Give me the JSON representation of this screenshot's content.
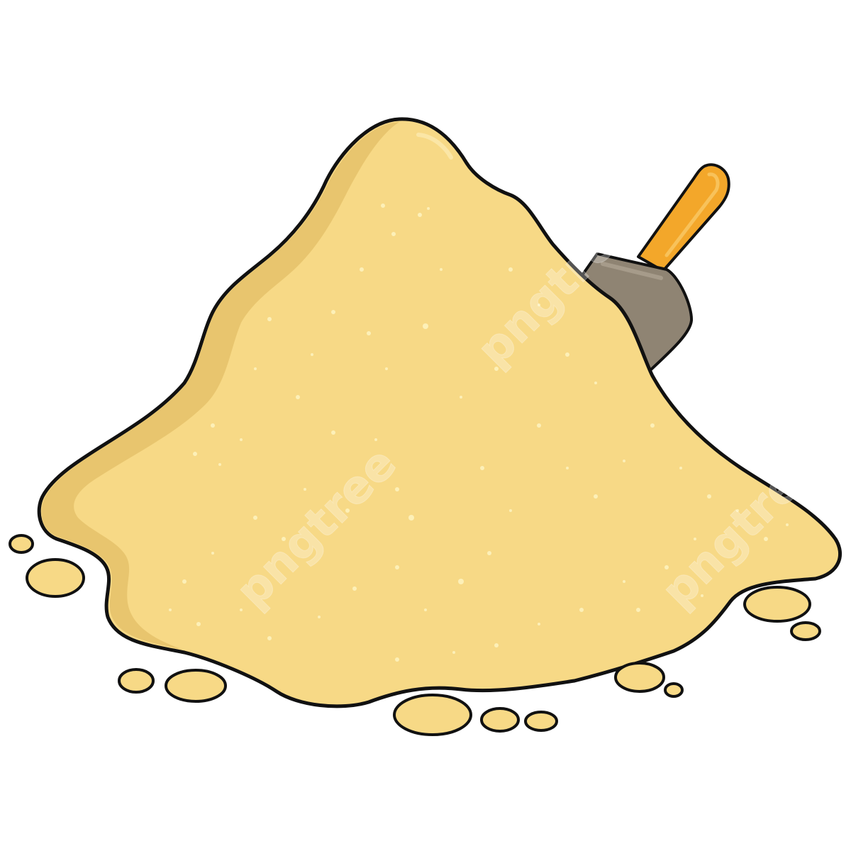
{
  "scene": {
    "subject": "sand-pile-with-shovel",
    "colors": {
      "background": "#ffffff",
      "sand": "#f7d986",
      "sand_shadow": "#e8c56e",
      "sand_highlight": "#fbe6a6",
      "sand_speckle": "#fdf0b8",
      "outline": "#111111",
      "shovel_blade": "#8f8473",
      "shovel_blade_highlight": "#a69b8a",
      "shovel_handle": "#f3a72a",
      "shovel_handle_highlight": "#f8c25a"
    }
  },
  "watermark": {
    "text": "pngtree"
  }
}
